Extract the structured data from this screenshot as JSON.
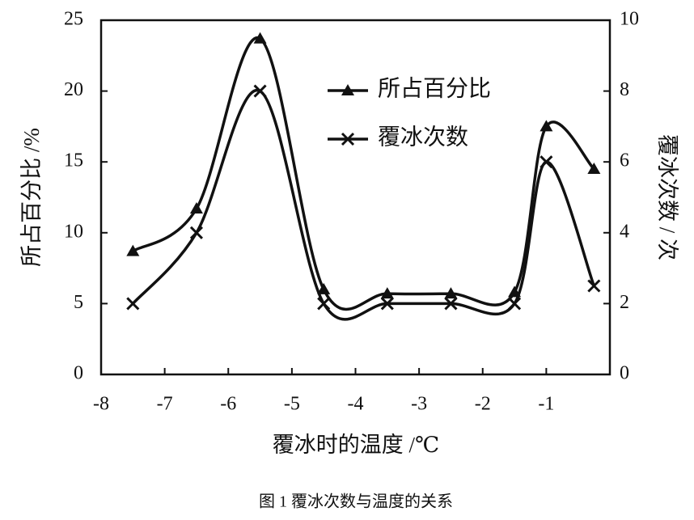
{
  "chart_data": {
    "type": "line",
    "caption": "图 1 覆冰次数与温度的关系",
    "x_label": "覆冰时的温度 /℃",
    "y_label": "所占百分比 /%",
    "y2_label": "覆冰次数 / 次",
    "x": [
      -7.5,
      -6.5,
      -5.5,
      -4.5,
      -3.5,
      -2.5,
      -1.5,
      -1,
      -0.25
    ],
    "series": [
      {
        "name": "所占百分比",
        "color": "#111111",
        "marker": "triangle",
        "values": [
          8.7,
          11.7,
          23.7,
          6.0,
          5.7,
          5.7,
          5.8,
          17.5,
          14.5
        ]
      },
      {
        "name": "覆冰次数",
        "color": "#111111",
        "marker": "x",
        "axis": "y2",
        "values": [
          2,
          4,
          8,
          2,
          2,
          2,
          2,
          6,
          2.5
        ]
      }
    ],
    "xlim": [
      -8,
      0
    ],
    "xticks": [
      -8,
      -7,
      -6,
      -5,
      -4,
      -3,
      -2,
      -1
    ],
    "ylim": [
      0,
      25
    ],
    "yticks": [
      0,
      5,
      10,
      15,
      20,
      25
    ],
    "y2lim": [
      0,
      10
    ],
    "y2ticks": [
      0,
      2,
      4,
      6,
      8,
      10
    ],
    "smooth": true,
    "legend": "upper-right"
  }
}
